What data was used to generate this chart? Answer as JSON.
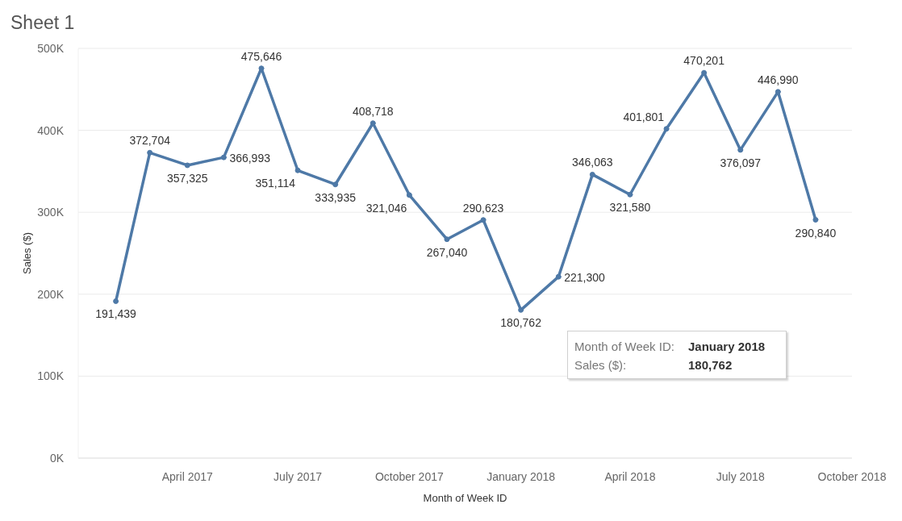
{
  "chart_data": {
    "type": "line",
    "title": "Sheet 1",
    "xlabel": "Month of Week ID",
    "ylabel": "Sales ($)",
    "x": [
      "2017-02",
      "2017-03",
      "2017-04",
      "2017-05",
      "2017-06",
      "2017-07",
      "2017-08",
      "2017-09",
      "2017-10",
      "2017-11",
      "2017-12",
      "2018-01",
      "2018-02",
      "2018-03",
      "2018-04",
      "2018-05",
      "2018-06",
      "2018-07",
      "2018-08",
      "2018-09"
    ],
    "series": [
      {
        "color": "#4e79a7",
        "values": [
          191439,
          372704,
          357325,
          366993,
          475646,
          351114,
          333935,
          408718,
          321046,
          267040,
          290623,
          180762,
          221300,
          346063,
          321580,
          401801,
          470201,
          376097,
          446990,
          290840
        ],
        "value_labels": [
          "191,439",
          "372,704",
          "357,325",
          "366,993",
          "475,646",
          "351,114",
          "333,935",
          "408,718",
          "321,046",
          "267,040",
          "290,623",
          "180,762",
          "221,300",
          "346,063",
          "321,580",
          "401,801",
          "470,201",
          "376,097",
          "446,990",
          "290,840"
        ]
      }
    ],
    "xlim": [
      "2017-01",
      "2018-10"
    ],
    "xticks": [
      {
        "value": "2017-04",
        "label": "April 2017"
      },
      {
        "value": "2017-07",
        "label": "July 2017"
      },
      {
        "value": "2017-10",
        "label": "October 2017"
      },
      {
        "value": "2018-01",
        "label": "January 2018"
      },
      {
        "value": "2018-04",
        "label": "April 2018"
      },
      {
        "value": "2018-07",
        "label": "July 2018"
      },
      {
        "value": "2018-10",
        "label": "October 2018"
      }
    ],
    "ylim": [
      0,
      500000
    ],
    "yticks": [
      {
        "value": 0,
        "label": "0K"
      },
      {
        "value": 100000,
        "label": "100K"
      },
      {
        "value": 200000,
        "label": "200K"
      },
      {
        "value": 300000,
        "label": "300K"
      },
      {
        "value": 400000,
        "label": "400K"
      },
      {
        "value": 500000,
        "label": "500K"
      }
    ],
    "grid": "y",
    "marker": "circle",
    "line_style": "solid",
    "annotations": [
      "Month of Week ID: January 2018",
      "Sales ($): 180,762"
    ]
  }
}
